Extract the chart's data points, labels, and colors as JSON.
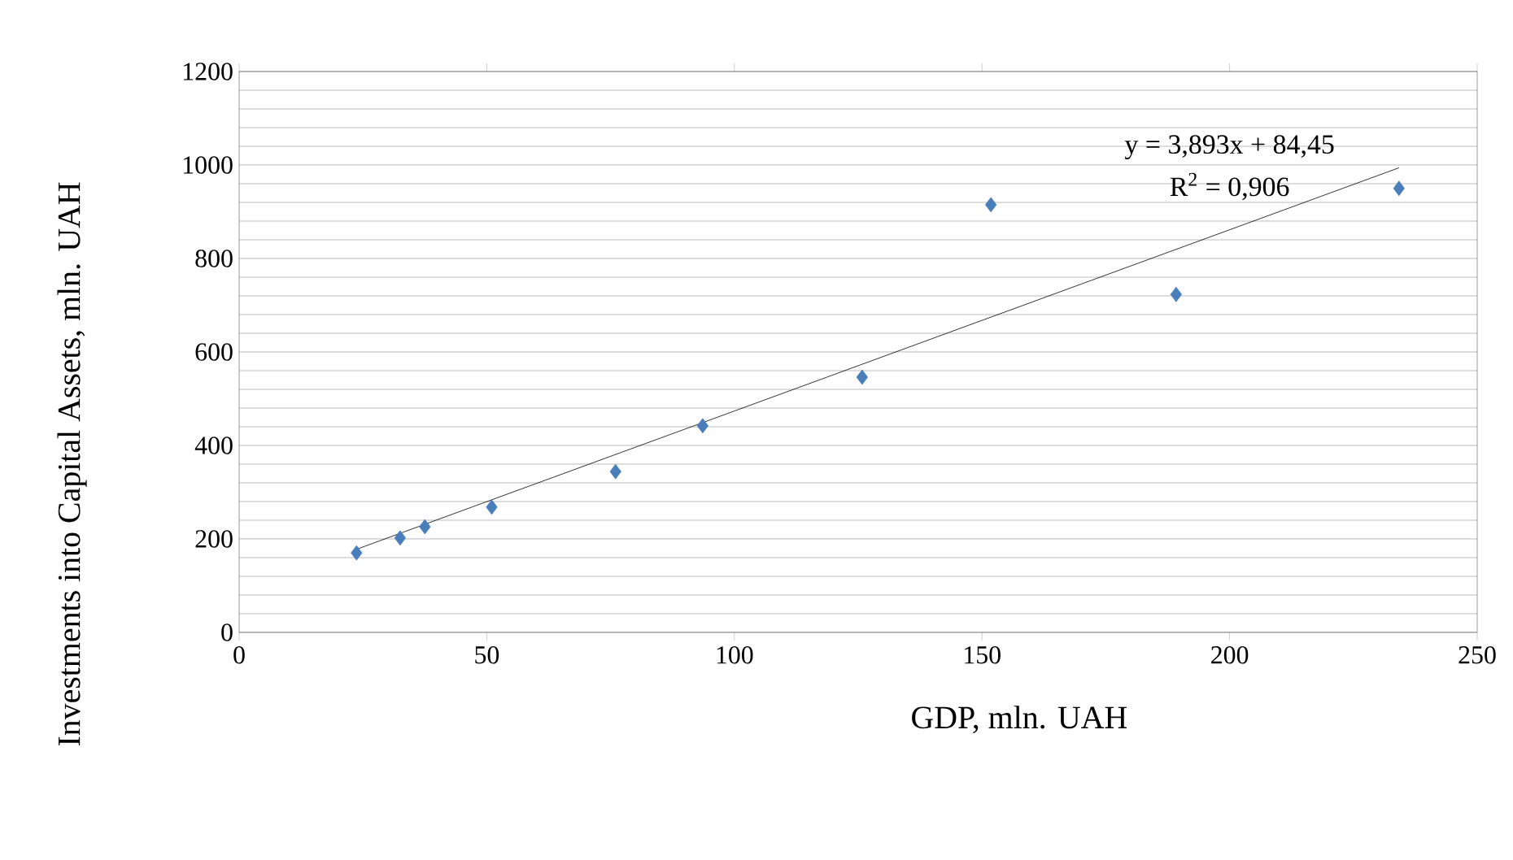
{
  "chart_data": {
    "type": "scatter",
    "xlabel": "GDP, mln. UAH",
    "ylabel": "Investments into Capital Assets, mln. UAH",
    "annotations": [
      "y = 3,893x + 84,45",
      "R$^{2}$ = 0,906"
    ],
    "xlim": [
      0,
      250
    ],
    "ylim": [
      0,
      1200
    ],
    "xticks": [
      0,
      50,
      100,
      150,
      200,
      250
    ],
    "yticks": [
      0,
      200,
      400,
      600,
      800,
      1000,
      1200
    ],
    "grid": "y",
    "marker": "diamond",
    "series": [
      {
        "color": "#4a7ebb",
        "x": [
          23.7,
          32.5,
          37.5,
          51,
          76,
          93.6,
          125.8,
          151.8,
          189.2,
          234.2
        ],
        "values": [
          170,
          202,
          226,
          268,
          344,
          442,
          546,
          915,
          723,
          950
        ]
      },
      {
        "type": "line",
        "color": "#000000",
        "marker": "none",
        "line_style": "solid",
        "x": [
          23.5,
          234.2
        ],
        "values": [
          177,
          994
        ]
      }
    ]
  }
}
